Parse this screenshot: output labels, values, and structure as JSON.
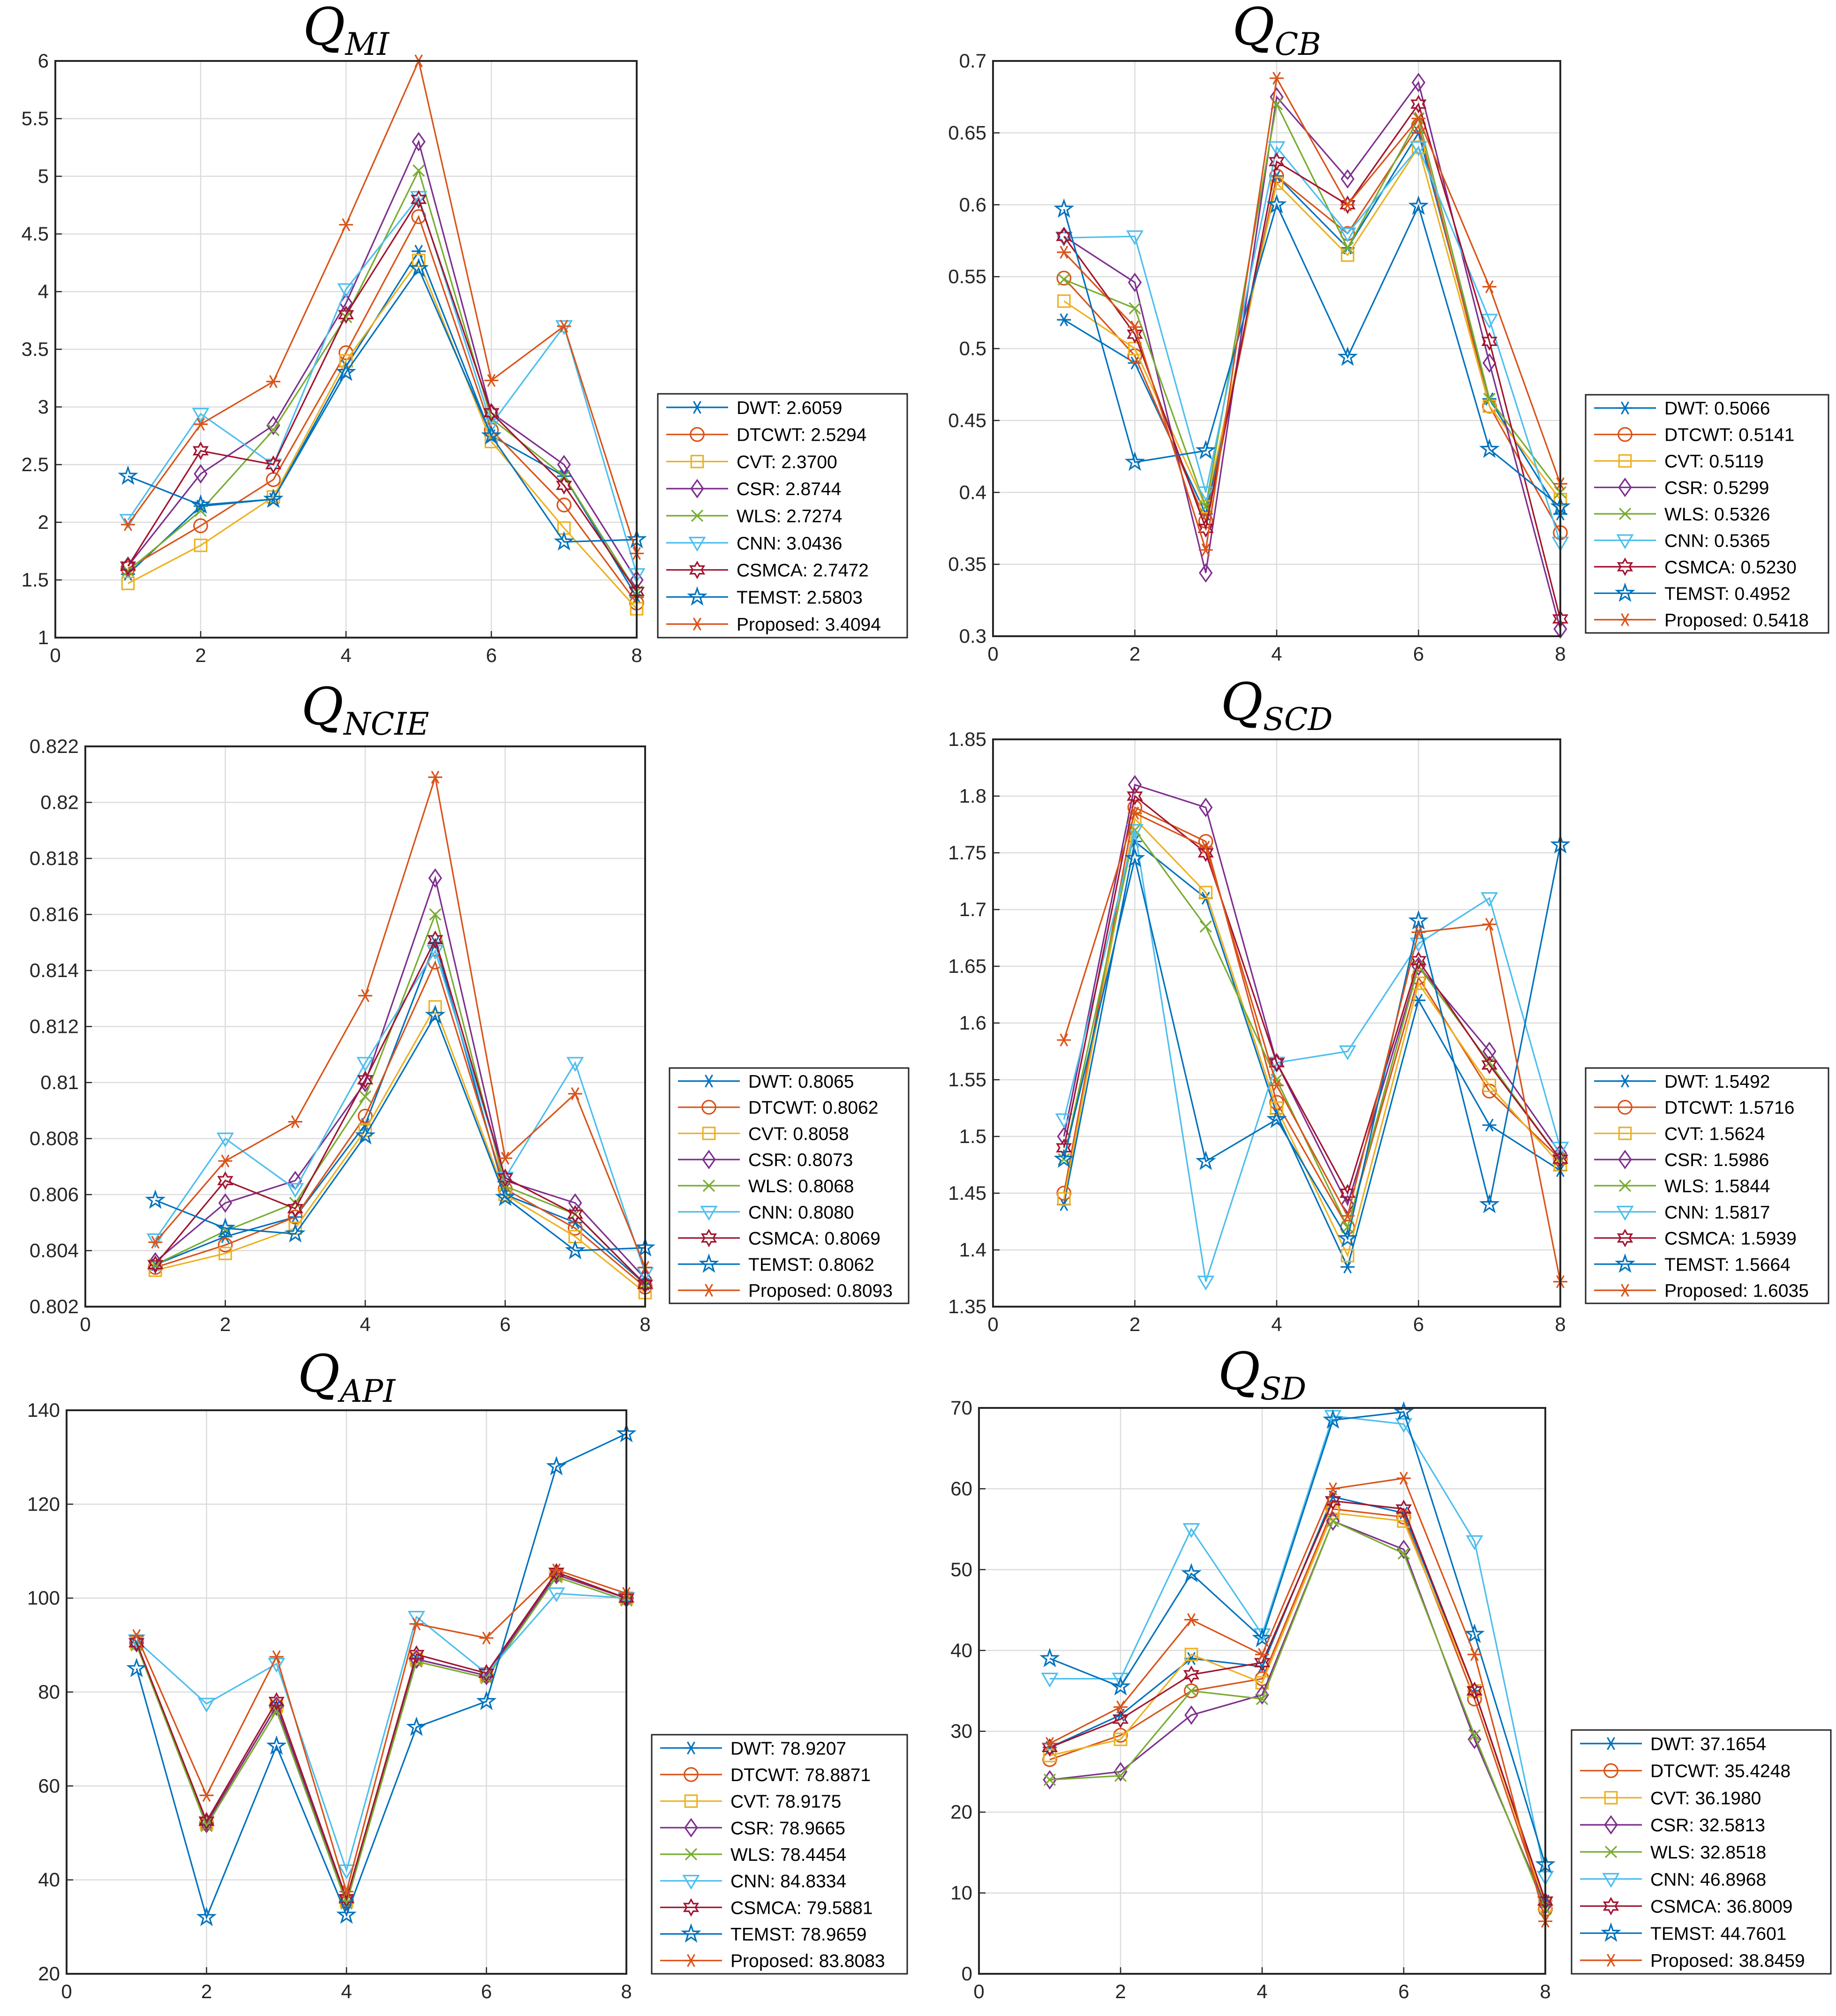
{
  "series_names": [
    "DWT",
    "DTCWT",
    "CVT",
    "CSR",
    "WLS",
    "CNN",
    "CSMCA",
    "TEMST",
    "Proposed"
  ],
  "colors": {
    "DWT": "#0072BD",
    "DTCWT": "#D95319",
    "CVT": "#EDB120",
    "CSR": "#7E2F8E",
    "WLS": "#77AC30",
    "CNN": "#4DBEEE",
    "CSMCA": "#A2142F",
    "TEMST": "#0072BD",
    "Proposed": "#D95319"
  },
  "markers": {
    "DWT": "asterisk",
    "DTCWT": "circle",
    "CVT": "square",
    "CSR": "diamond",
    "WLS": "cross",
    "CNN": "triangle-down",
    "CSMCA": "hexagram",
    "TEMST": "pentagram",
    "Proposed": "asterisk"
  },
  "chart_data": [
    {
      "type": "line",
      "title": "Q",
      "title_subscript": "MI",
      "x": [
        1,
        2,
        3,
        4,
        5,
        6,
        7,
        8
      ],
      "xlim": [
        0,
        8
      ],
      "ylim": [
        1,
        6
      ],
      "xticks": [
        "0",
        "2",
        "4",
        "6",
        "8"
      ],
      "yticks": [
        "1",
        "1.5",
        "2",
        "2.5",
        "3",
        "3.5",
        "4",
        "4.5",
        "5",
        "5.5",
        "6"
      ],
      "grid": true,
      "legend_position": "bottom-right-outside",
      "series": [
        {
          "name": "DWT",
          "values": [
            1.55,
            2.14,
            2.2,
            3.35,
            4.35,
            2.75,
            2.4,
            1.35
          ],
          "legend": "DWT: 2.6059"
        },
        {
          "name": "DTCWT",
          "values": [
            1.6,
            1.97,
            2.37,
            3.47,
            4.65,
            2.8,
            2.15,
            1.3
          ],
          "legend": "DTCWT: 2.5294"
        },
        {
          "name": "CVT",
          "values": [
            1.47,
            1.8,
            2.22,
            3.4,
            4.27,
            2.7,
            1.95,
            1.25
          ],
          "legend": "CVT: 2.3700"
        },
        {
          "name": "CSR",
          "values": [
            1.62,
            2.42,
            2.84,
            3.9,
            5.3,
            2.95,
            2.5,
            1.5
          ],
          "legend": "CSR: 2.8744"
        },
        {
          "name": "WLS",
          "values": [
            1.58,
            2.1,
            2.8,
            3.78,
            5.05,
            2.9,
            2.4,
            1.4
          ],
          "legend": "WLS: 2.7274"
        },
        {
          "name": "CNN",
          "values": [
            2.02,
            2.94,
            2.5,
            4.02,
            4.82,
            2.85,
            3.7,
            1.55
          ],
          "legend": "CNN: 3.0436"
        },
        {
          "name": "CSMCA",
          "values": [
            1.62,
            2.62,
            2.5,
            3.8,
            4.8,
            2.95,
            2.32,
            1.4
          ],
          "legend": "CSMCA: 2.7472"
        },
        {
          "name": "TEMST",
          "values": [
            2.4,
            2.15,
            2.2,
            3.3,
            4.2,
            2.75,
            1.83,
            1.85
          ],
          "legend": "TEMST: 2.5803"
        },
        {
          "name": "Proposed",
          "values": [
            1.98,
            2.85,
            3.22,
            4.58,
            6.0,
            3.23,
            3.7,
            1.73
          ],
          "legend": "Proposed: 3.4094"
        }
      ]
    },
    {
      "type": "line",
      "title": "Q",
      "title_subscript": "CB",
      "x": [
        1,
        2,
        3,
        4,
        5,
        6,
        7,
        8
      ],
      "xlim": [
        0,
        8
      ],
      "ylim": [
        0.3,
        0.7
      ],
      "xticks": [
        "0",
        "2",
        "4",
        "6",
        "8"
      ],
      "yticks": [
        "0.3",
        "0.35",
        "0.4",
        "0.45",
        "0.5",
        "0.55",
        "0.6",
        "0.65",
        "0.7"
      ],
      "grid": true,
      "legend_position": "bottom-right-outside",
      "series": [
        {
          "name": "DWT",
          "values": [
            0.52,
            0.49,
            0.385,
            0.62,
            0.57,
            0.65,
            0.465,
            0.385
          ],
          "legend": "DWT: 0.5066"
        },
        {
          "name": "DTCWT",
          "values": [
            0.549,
            0.495,
            0.38,
            0.62,
            0.58,
            0.655,
            0.46,
            0.372
          ],
          "legend": "DTCWT: 0.5141"
        },
        {
          "name": "CVT",
          "values": [
            0.533,
            0.5,
            0.39,
            0.615,
            0.565,
            0.64,
            0.46,
            0.395
          ],
          "legend": "CVT: 0.5119"
        },
        {
          "name": "CSR",
          "values": [
            0.578,
            0.546,
            0.344,
            0.675,
            0.618,
            0.685,
            0.49,
            0.305
          ],
          "legend": "CSR: 0.5299"
        },
        {
          "name": "WLS",
          "values": [
            0.548,
            0.528,
            0.39,
            0.67,
            0.57,
            0.66,
            0.465,
            0.4
          ],
          "legend": "WLS: 0.5326"
        },
        {
          "name": "CNN",
          "values": [
            0.577,
            0.578,
            0.4,
            0.64,
            0.58,
            0.64,
            0.52,
            0.365
          ],
          "legend": "CNN: 0.5365"
        },
        {
          "name": "CSMCA",
          "values": [
            0.578,
            0.51,
            0.375,
            0.63,
            0.6,
            0.67,
            0.505,
            0.312
          ],
          "legend": "CSMCA: 0.5230"
        },
        {
          "name": "TEMST",
          "values": [
            0.597,
            0.421,
            0.429,
            0.6,
            0.494,
            0.599,
            0.43,
            0.39
          ],
          "legend": "TEMST: 0.4952"
        },
        {
          "name": "Proposed",
          "values": [
            0.567,
            0.515,
            0.36,
            0.688,
            0.6,
            0.66,
            0.543,
            0.406
          ],
          "legend": "Proposed: 0.5418"
        }
      ]
    },
    {
      "type": "line",
      "title": "Q",
      "title_subscript": "NCIE",
      "x": [
        1,
        2,
        3,
        4,
        5,
        6,
        7,
        8
      ],
      "xlim": [
        0,
        8
      ],
      "ylim": [
        0.802,
        0.822
      ],
      "xticks": [
        "0",
        "2",
        "4",
        "6",
        "8"
      ],
      "yticks": [
        "0.802",
        "0.804",
        "0.806",
        "0.808",
        "0.81",
        "0.812",
        "0.814",
        "0.816",
        "0.818",
        "0.82",
        "0.822"
      ],
      "grid": true,
      "legend_position": "bottom-right-outside",
      "series": [
        {
          "name": "DWT",
          "values": [
            0.8035,
            0.8045,
            0.8052,
            0.8085,
            0.815,
            0.806,
            0.805,
            0.8028
          ],
          "legend": "DWT: 0.8065"
        },
        {
          "name": "DTCWT",
          "values": [
            0.8034,
            0.8042,
            0.8052,
            0.8088,
            0.8143,
            0.8062,
            0.8048,
            0.8027
          ],
          "legend": "DTCWT: 0.8062"
        },
        {
          "name": "CVT",
          "values": [
            0.8033,
            0.8039,
            0.8048,
            0.8083,
            0.8127,
            0.806,
            0.8045,
            0.8025
          ],
          "legend": "CVT: 0.8058"
        },
        {
          "name": "CSR",
          "values": [
            0.8036,
            0.8057,
            0.8065,
            0.81,
            0.8173,
            0.8065,
            0.8057,
            0.803
          ],
          "legend": "CSR: 0.8073"
        },
        {
          "name": "WLS",
          "values": [
            0.8035,
            0.8047,
            0.8057,
            0.8095,
            0.816,
            0.8063,
            0.8053,
            0.8028
          ],
          "legend": "WLS: 0.8068"
        },
        {
          "name": "CNN",
          "values": [
            0.8044,
            0.808,
            0.8062,
            0.8107,
            0.8147,
            0.8066,
            0.8107,
            0.8032
          ],
          "legend": "CNN: 0.8080"
        },
        {
          "name": "CSMCA",
          "values": [
            0.8035,
            0.8065,
            0.8055,
            0.8101,
            0.8151,
            0.8066,
            0.8053,
            0.8028
          ],
          "legend": "CSMCA: 0.8069"
        },
        {
          "name": "TEMST",
          "values": [
            0.8058,
            0.8048,
            0.8046,
            0.8081,
            0.8124,
            0.8059,
            0.804,
            0.8041
          ],
          "legend": "TEMST: 0.8062"
        },
        {
          "name": "Proposed",
          "values": [
            0.8043,
            0.8072,
            0.8086,
            0.8131,
            0.8209,
            0.8073,
            0.8096,
            0.8034
          ],
          "legend": "Proposed: 0.8093"
        }
      ]
    },
    {
      "type": "line",
      "title": "Q",
      "title_subscript": "SCD",
      "x": [
        1,
        2,
        3,
        4,
        5,
        6,
        7,
        8
      ],
      "xlim": [
        0,
        8
      ],
      "ylim": [
        1.35,
        1.85
      ],
      "xticks": [
        "0",
        "2",
        "4",
        "6",
        "8"
      ],
      "yticks": [
        "1.35",
        "1.4",
        "1.45",
        "1.5",
        "1.55",
        "1.6",
        "1.65",
        "1.7",
        "1.75",
        "1.8",
        "1.85"
      ],
      "grid": true,
      "legend_position": "bottom-right-outside",
      "series": [
        {
          "name": "DWT",
          "values": [
            1.44,
            1.76,
            1.71,
            1.52,
            1.385,
            1.62,
            1.51,
            1.47
          ],
          "legend": "DWT: 1.5492"
        },
        {
          "name": "DTCWT",
          "values": [
            1.45,
            1.79,
            1.76,
            1.53,
            1.42,
            1.64,
            1.54,
            1.48
          ],
          "legend": "DTCWT: 1.5716"
        },
        {
          "name": "CVT",
          "values": [
            1.445,
            1.78,
            1.715,
            1.525,
            1.395,
            1.635,
            1.545,
            1.475
          ],
          "legend": "CVT: 1.5624"
        },
        {
          "name": "CSR",
          "values": [
            1.5,
            1.81,
            1.79,
            1.565,
            1.44,
            1.65,
            1.575,
            1.485
          ],
          "legend": "CSR: 1.5986"
        },
        {
          "name": "WLS",
          "values": [
            1.48,
            1.77,
            1.685,
            1.55,
            1.42,
            1.65,
            1.565,
            1.48
          ],
          "legend": "WLS: 1.5844"
        },
        {
          "name": "CNN",
          "values": [
            1.515,
            1.77,
            1.372,
            1.565,
            1.575,
            1.67,
            1.71,
            1.49
          ],
          "legend": "CNN: 1.5817"
        },
        {
          "name": "CSMCA",
          "values": [
            1.49,
            1.8,
            1.75,
            1.565,
            1.45,
            1.655,
            1.563,
            1.48
          ],
          "legend": "CSMCA: 1.5939"
        },
        {
          "name": "TEMST",
          "values": [
            1.48,
            1.745,
            1.478,
            1.515,
            1.41,
            1.69,
            1.44,
            1.757
          ],
          "legend": "TEMST: 1.5664"
        },
        {
          "name": "Proposed",
          "values": [
            1.585,
            1.785,
            1.755,
            1.545,
            1.43,
            1.68,
            1.687,
            1.372
          ],
          "legend": "Proposed: 1.6035"
        }
      ]
    },
    {
      "type": "line",
      "title": "Q",
      "title_subscript": "API",
      "x": [
        1,
        2,
        3,
        4,
        5,
        6,
        7,
        8
      ],
      "xlim": [
        0,
        8
      ],
      "ylim": [
        20,
        140
      ],
      "xticks": [
        "0",
        "2",
        "4",
        "6",
        "8"
      ],
      "yticks": [
        "20",
        "40",
        "60",
        "80",
        "100",
        "120",
        "140"
      ],
      "grid": true,
      "legend_position": "bottom-right-outside",
      "series": [
        {
          "name": "DWT",
          "values": [
            90.5,
            52,
            77,
            35.5,
            87,
            83.5,
            105,
            100
          ],
          "legend": "DWT: 78.9207"
        },
        {
          "name": "DTCWT",
          "values": [
            90.5,
            52,
            77,
            35.5,
            87,
            83.5,
            105,
            100
          ],
          "legend": "DTCWT: 78.8871"
        },
        {
          "name": "CVT",
          "values": [
            90.5,
            52,
            77,
            35.5,
            87,
            83.5,
            105,
            100
          ],
          "legend": "CVT: 78.9175"
        },
        {
          "name": "CSR",
          "values": [
            90.5,
            52,
            77,
            35.5,
            87,
            83.5,
            105,
            100
          ],
          "legend": "CSR: 78.9665"
        },
        {
          "name": "WLS",
          "values": [
            90,
            51.5,
            76,
            35,
            86.5,
            83,
            104.5,
            99.5
          ],
          "legend": "WLS: 78.4454"
        },
        {
          "name": "CNN",
          "values": [
            91,
            77.5,
            86,
            42,
            96,
            84,
            101,
            100
          ],
          "legend": "CNN: 84.8334"
        },
        {
          "name": "CSMCA",
          "values": [
            90.5,
            52.5,
            78,
            36,
            88,
            84,
            105.5,
            100
          ],
          "legend": "CSMCA: 79.5881"
        },
        {
          "name": "TEMST",
          "values": [
            85,
            32,
            68.5,
            32.5,
            72.5,
            78,
            128,
            135
          ],
          "legend": "TEMST: 78.9659"
        },
        {
          "name": "Proposed",
          "values": [
            92,
            58,
            87.5,
            37.5,
            94.5,
            91.5,
            106,
            101
          ],
          "legend": "Proposed: 83.8083"
        }
      ]
    },
    {
      "type": "line",
      "title": "Q",
      "title_subscript": "SD",
      "x": [
        1,
        2,
        3,
        4,
        5,
        6,
        7,
        8
      ],
      "xlim": [
        0,
        8
      ],
      "ylim": [
        0,
        70
      ],
      "xticks": [
        "0",
        "2",
        "4",
        "6",
        "8"
      ],
      "yticks": [
        "0",
        "10",
        "20",
        "30",
        "40",
        "50",
        "60",
        "70"
      ],
      "grid": true,
      "legend_position": "bottom-right-outside",
      "series": [
        {
          "name": "DWT",
          "values": [
            28,
            32,
            39,
            38,
            59,
            57,
            35,
            9
          ],
          "legend": "DWT: 37.1654"
        },
        {
          "name": "DTCWT",
          "values": [
            26.5,
            29.5,
            35,
            36.5,
            57.5,
            56.5,
            34,
            8
          ],
          "legend": "DTCWT: 35.4248"
        },
        {
          "name": "CVT",
          "values": [
            27,
            29,
            39.5,
            36,
            57,
            56,
            35,
            8.5
          ],
          "legend": "CVT: 36.1980"
        },
        {
          "name": "CSR",
          "values": [
            24,
            25,
            32,
            34.5,
            56,
            52.5,
            29,
            8.5
          ],
          "legend": "CSR: 32.5813"
        },
        {
          "name": "WLS",
          "values": [
            24,
            24.5,
            35,
            34,
            56,
            52,
            29.5,
            8
          ],
          "legend": "WLS: 32.8518"
        },
        {
          "name": "CNN",
          "values": [
            36.5,
            36.5,
            55,
            42,
            69,
            68,
            53.5,
            12
          ],
          "legend": "CNN: 46.8968"
        },
        {
          "name": "CSMCA",
          "values": [
            28,
            31.5,
            37,
            38.5,
            58.5,
            57.5,
            35,
            9
          ],
          "legend": "CSMCA: 36.8009"
        },
        {
          "name": "TEMST",
          "values": [
            39,
            35.5,
            49.5,
            41.5,
            68.5,
            69.5,
            42,
            13.5
          ],
          "legend": "TEMST: 44.7601"
        },
        {
          "name": "Proposed",
          "values": [
            28.5,
            33,
            43.8,
            39.5,
            60,
            61.3,
            39.5,
            6.5
          ],
          "legend": "Proposed: 38.8459"
        }
      ]
    }
  ]
}
